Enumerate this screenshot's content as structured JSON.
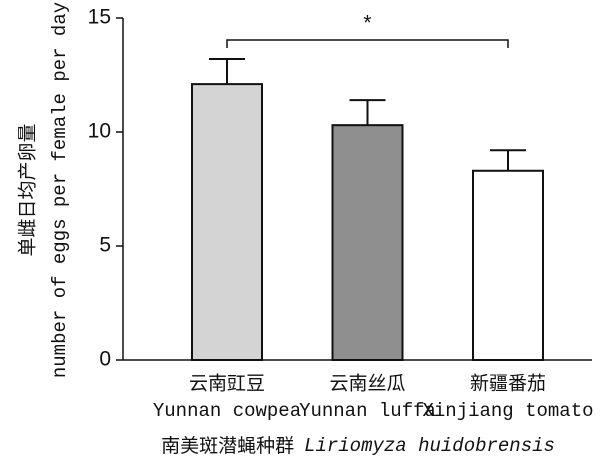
{
  "chart_data": {
    "type": "bar",
    "y_label_cn": "单雌日均产卵量",
    "y_label_en": "number of eggs per female per day",
    "x_label_cn": "南美斑潜蝇种群",
    "x_label_species": "Liriomyza huidobrensis",
    "categories": [
      "云南豇豆",
      "云南丝瓜",
      "新疆番茄"
    ],
    "categories_en": [
      "Yunnan cowpea",
      "Yunnan luffa",
      "Xinjiang tomato"
    ],
    "values": [
      12.1,
      10.3,
      8.3
    ],
    "errors": [
      1.1,
      1.1,
      0.9
    ],
    "colors": [
      "#d4d4d4",
      "#8f8f8f",
      "#ffffff"
    ],
    "ylim": [
      0,
      15
    ],
    "yticks": [
      0,
      5,
      10,
      15
    ],
    "annotation": {
      "text": "*",
      "from": 0,
      "to": 2
    }
  }
}
